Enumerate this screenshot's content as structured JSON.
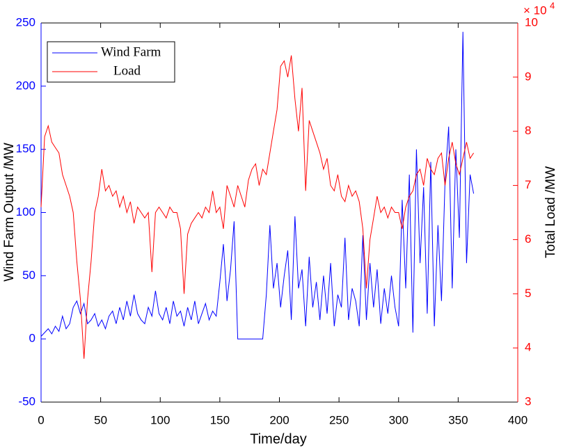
{
  "chart_data": {
    "type": "line",
    "xlabel": "Time/day",
    "ylabel": "Wind Farm Output /MW",
    "y2label": "Total Load /MW",
    "y2_scale_label": "× 10",
    "y2_scale_exponent": "4",
    "xlim": [
      0,
      400
    ],
    "xticks": [
      0,
      50,
      100,
      150,
      200,
      250,
      300,
      350,
      400
    ],
    "ylim": [
      -50,
      250
    ],
    "yticks": [
      -50,
      0,
      50,
      100,
      150,
      200,
      250
    ],
    "y2lim": [
      3,
      10
    ],
    "y2ticks": [
      3,
      4,
      5,
      6,
      7,
      8,
      9,
      10
    ],
    "y_tick_color": "#0000ff",
    "y2_tick_color": "#ff0000",
    "legend": "upper left",
    "x": [
      0,
      3,
      6,
      9,
      12,
      15,
      18,
      21,
      24,
      27,
      30,
      33,
      36,
      39,
      42,
      45,
      48,
      51,
      54,
      57,
      60,
      63,
      66,
      69,
      72,
      75,
      78,
      81,
      84,
      87,
      90,
      93,
      96,
      99,
      102,
      105,
      108,
      111,
      114,
      117,
      120,
      123,
      126,
      129,
      132,
      135,
      138,
      141,
      144,
      147,
      150,
      153,
      156,
      159,
      162,
      165,
      168,
      171,
      174,
      177,
      180,
      183,
      186,
      189,
      192,
      195,
      198,
      201,
      204,
      207,
      210,
      213,
      216,
      219,
      222,
      225,
      228,
      231,
      234,
      237,
      240,
      243,
      246,
      249,
      252,
      255,
      258,
      261,
      264,
      267,
      270,
      273,
      276,
      279,
      282,
      285,
      288,
      291,
      294,
      297,
      300,
      303,
      306,
      309,
      312,
      315,
      318,
      321,
      324,
      327,
      330,
      333,
      336,
      339,
      342,
      345,
      348,
      351,
      354,
      357,
      360,
      363
    ],
    "series": [
      {
        "name": "Wind Farm",
        "color": "#0000ff",
        "values": [
          2,
          5,
          8,
          4,
          10,
          6,
          18,
          8,
          12,
          25,
          30,
          20,
          28,
          12,
          15,
          20,
          10,
          15,
          8,
          18,
          22,
          12,
          25,
          15,
          30,
          18,
          35,
          20,
          15,
          12,
          25,
          18,
          38,
          20,
          15,
          25,
          12,
          30,
          18,
          22,
          10,
          25,
          15,
          30,
          12,
          20,
          28,
          15,
          22,
          18,
          45,
          75,
          30,
          55,
          93,
          0,
          0,
          0,
          0,
          0,
          0,
          0,
          0,
          35,
          90,
          40,
          60,
          25,
          50,
          70,
          15,
          97,
          40,
          55,
          10,
          65,
          25,
          45,
          15,
          50,
          20,
          60,
          10,
          35,
          25,
          80,
          15,
          40,
          30,
          10,
          82,
          15,
          60,
          25,
          55,
          12,
          40,
          20,
          50,
          25,
          10,
          110,
          40,
          130,
          5,
          150,
          60,
          120,
          20,
          140,
          10,
          90,
          30,
          125,
          168,
          40,
          150,
          80,
          243,
          60,
          130,
          115
        ]
      },
      {
        "name": "Load",
        "color": "#ff0000",
        "axis": "y2",
        "values": [
          6.6,
          7.9,
          8.1,
          7.8,
          7.7,
          7.6,
          7.2,
          7.0,
          6.8,
          6.5,
          5.6,
          4.9,
          3.8,
          4.9,
          5.6,
          6.5,
          6.8,
          7.3,
          6.9,
          7.0,
          6.8,
          6.9,
          6.6,
          6.8,
          6.5,
          6.7,
          6.3,
          6.6,
          6.5,
          6.4,
          6.5,
          5.4,
          6.5,
          6.6,
          6.5,
          6.4,
          6.6,
          6.5,
          6.5,
          6.2,
          5.0,
          6.1,
          6.3,
          6.4,
          6.5,
          6.4,
          6.6,
          6.5,
          6.9,
          6.5,
          6.6,
          6.2,
          7.0,
          6.8,
          6.6,
          7.0,
          6.8,
          6.6,
          7.1,
          7.3,
          7.4,
          7.0,
          7.3,
          7.2,
          7.6,
          8.0,
          8.4,
          9.2,
          9.3,
          9.0,
          9.4,
          8.6,
          8.0,
          8.8,
          6.9,
          8.2,
          8.0,
          7.8,
          7.6,
          7.3,
          7.5,
          7.0,
          6.9,
          7.2,
          6.8,
          6.7,
          7.0,
          6.8,
          6.9,
          6.7,
          6.2,
          5.1,
          6.0,
          6.4,
          6.8,
          6.5,
          6.6,
          6.4,
          6.6,
          6.5,
          6.5,
          6.2,
          6.6,
          6.8,
          6.9,
          7.2,
          7.3,
          7.0,
          7.5,
          7.3,
          7.2,
          7.5,
          7.6,
          7.0,
          7.5,
          7.8,
          7.4,
          7.2,
          7.5,
          7.8,
          7.5,
          7.6
        ]
      }
    ]
  }
}
